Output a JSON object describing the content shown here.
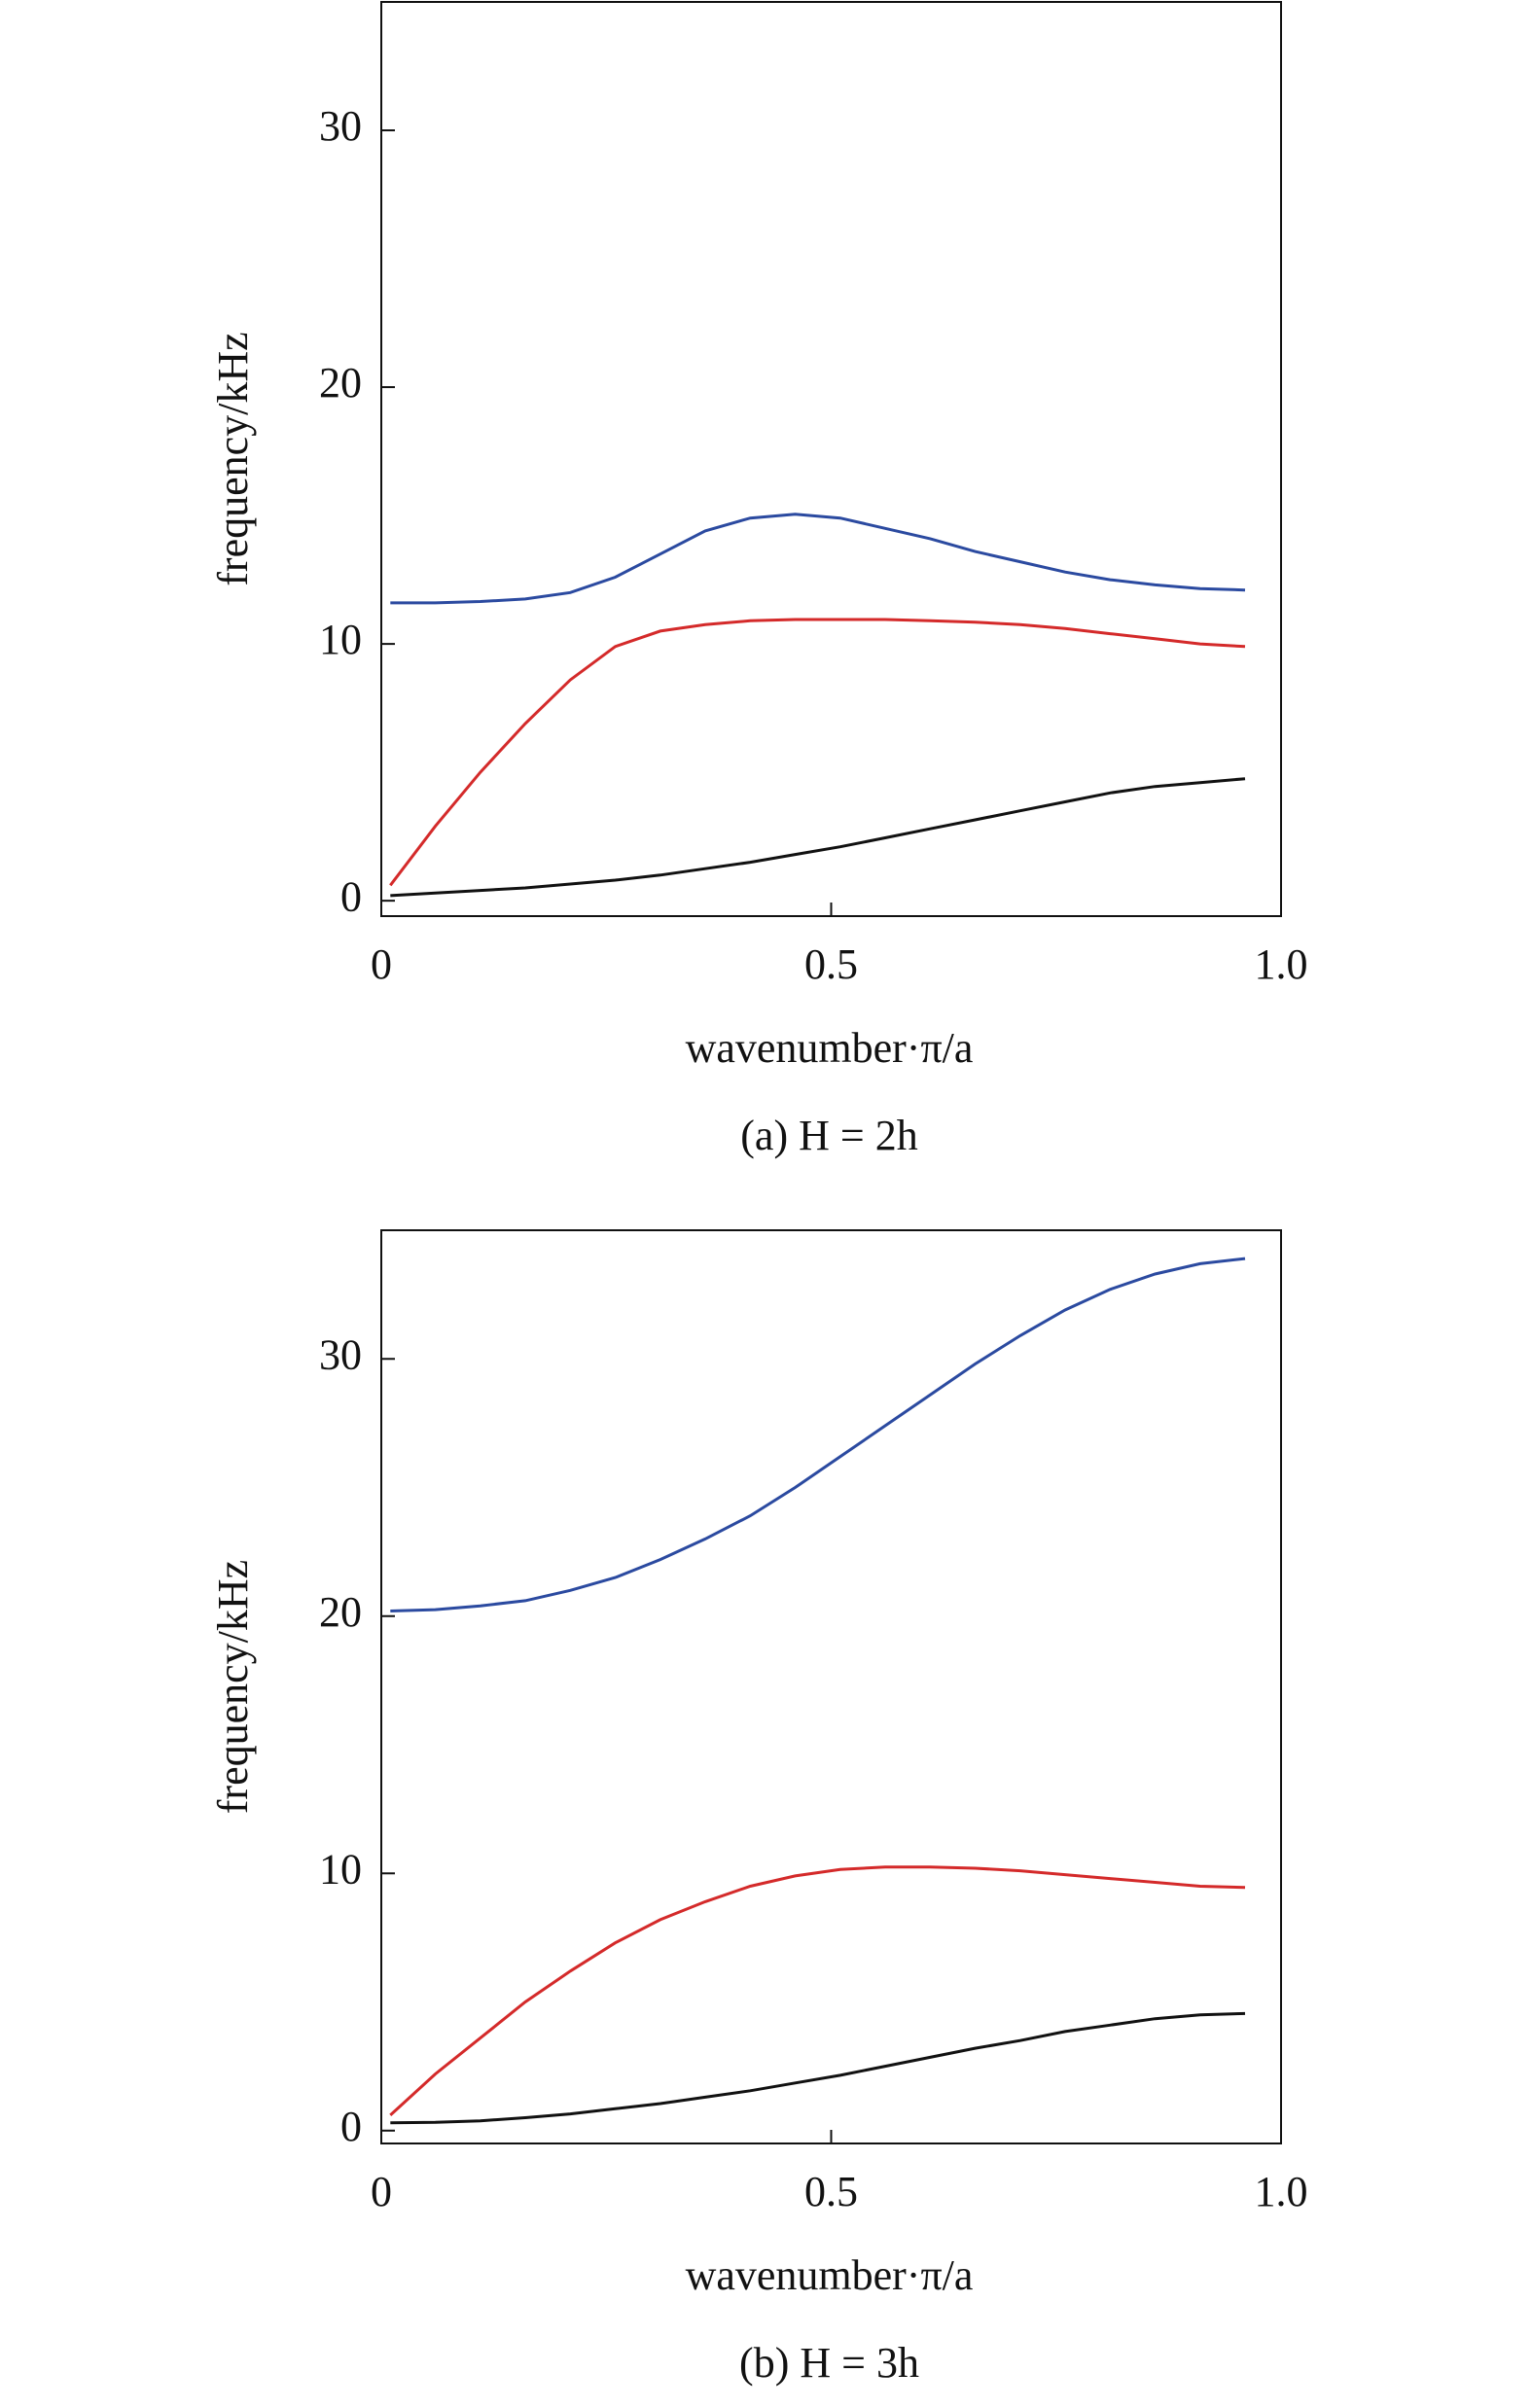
{
  "chart_data": [
    {
      "type": "line",
      "caption": "(a) H = 2h",
      "x_label": "wavenumber·π/a",
      "y_label": "frequency/kHz",
      "xlim": [
        0,
        1
      ],
      "ylim": [
        -0.6,
        35
      ],
      "xticks": [
        0,
        0.5,
        {
          "value": 1,
          "label": "1.0"
        }
      ],
      "yticks": [
        0,
        10,
        20,
        30
      ],
      "x": [
        0.01,
        0.06,
        0.11,
        0.16,
        0.21,
        0.26,
        0.31,
        0.36,
        0.41,
        0.46,
        0.51,
        0.56,
        0.61,
        0.66,
        0.71,
        0.76,
        0.81,
        0.86,
        0.91,
        0.96
      ],
      "series": [
        {
          "color": "#2b4aa0",
          "values": [
            11.6,
            11.6,
            11.65,
            11.75,
            12.0,
            12.6,
            13.5,
            14.4,
            14.9,
            15.05,
            14.9,
            14.5,
            14.1,
            13.6,
            13.2,
            12.8,
            12.5,
            12.3,
            12.15,
            12.1
          ]
        },
        {
          "color": "#d42a2a",
          "values": [
            0.6,
            2.9,
            5.0,
            6.9,
            8.6,
            9.9,
            10.5,
            10.75,
            10.9,
            10.95,
            10.95,
            10.95,
            10.9,
            10.85,
            10.75,
            10.6,
            10.4,
            10.2,
            10.0,
            9.9
          ]
        },
        {
          "color": "#111111",
          "values": [
            0.2,
            0.3,
            0.4,
            0.5,
            0.65,
            0.8,
            1.0,
            1.25,
            1.5,
            1.8,
            2.1,
            2.45,
            2.8,
            3.15,
            3.5,
            3.85,
            4.2,
            4.45,
            4.6,
            4.75
          ]
        }
      ]
    },
    {
      "type": "line",
      "caption": "(b) H = 3h",
      "x_label": "wavenumber·π/a",
      "y_label": "frequency/kHz",
      "xlim": [
        0,
        1
      ],
      "ylim": [
        -0.5,
        35
      ],
      "xticks": [
        0,
        0.5,
        {
          "value": 1,
          "label": "1.0"
        }
      ],
      "yticks": [
        0,
        10,
        20,
        30
      ],
      "x": [
        0.01,
        0.06,
        0.11,
        0.16,
        0.21,
        0.26,
        0.31,
        0.36,
        0.41,
        0.46,
        0.51,
        0.56,
        0.61,
        0.66,
        0.71,
        0.76,
        0.81,
        0.86,
        0.91,
        0.96
      ],
      "series": [
        {
          "color": "#2b4aa0",
          "values": [
            20.2,
            20.25,
            20.4,
            20.6,
            21.0,
            21.5,
            22.2,
            23.0,
            23.9,
            25.0,
            26.2,
            27.4,
            28.6,
            29.8,
            30.9,
            31.9,
            32.7,
            33.3,
            33.7,
            33.9
          ]
        },
        {
          "color": "#d42a2a",
          "values": [
            0.6,
            2.2,
            3.6,
            5.0,
            6.2,
            7.3,
            8.2,
            8.9,
            9.5,
            9.9,
            10.15,
            10.25,
            10.25,
            10.2,
            10.1,
            9.95,
            9.8,
            9.65,
            9.5,
            9.45
          ]
        },
        {
          "color": "#111111",
          "values": [
            0.3,
            0.32,
            0.38,
            0.5,
            0.65,
            0.85,
            1.05,
            1.3,
            1.55,
            1.85,
            2.15,
            2.5,
            2.85,
            3.2,
            3.5,
            3.85,
            4.1,
            4.35,
            4.5,
            4.55
          ]
        }
      ]
    }
  ]
}
